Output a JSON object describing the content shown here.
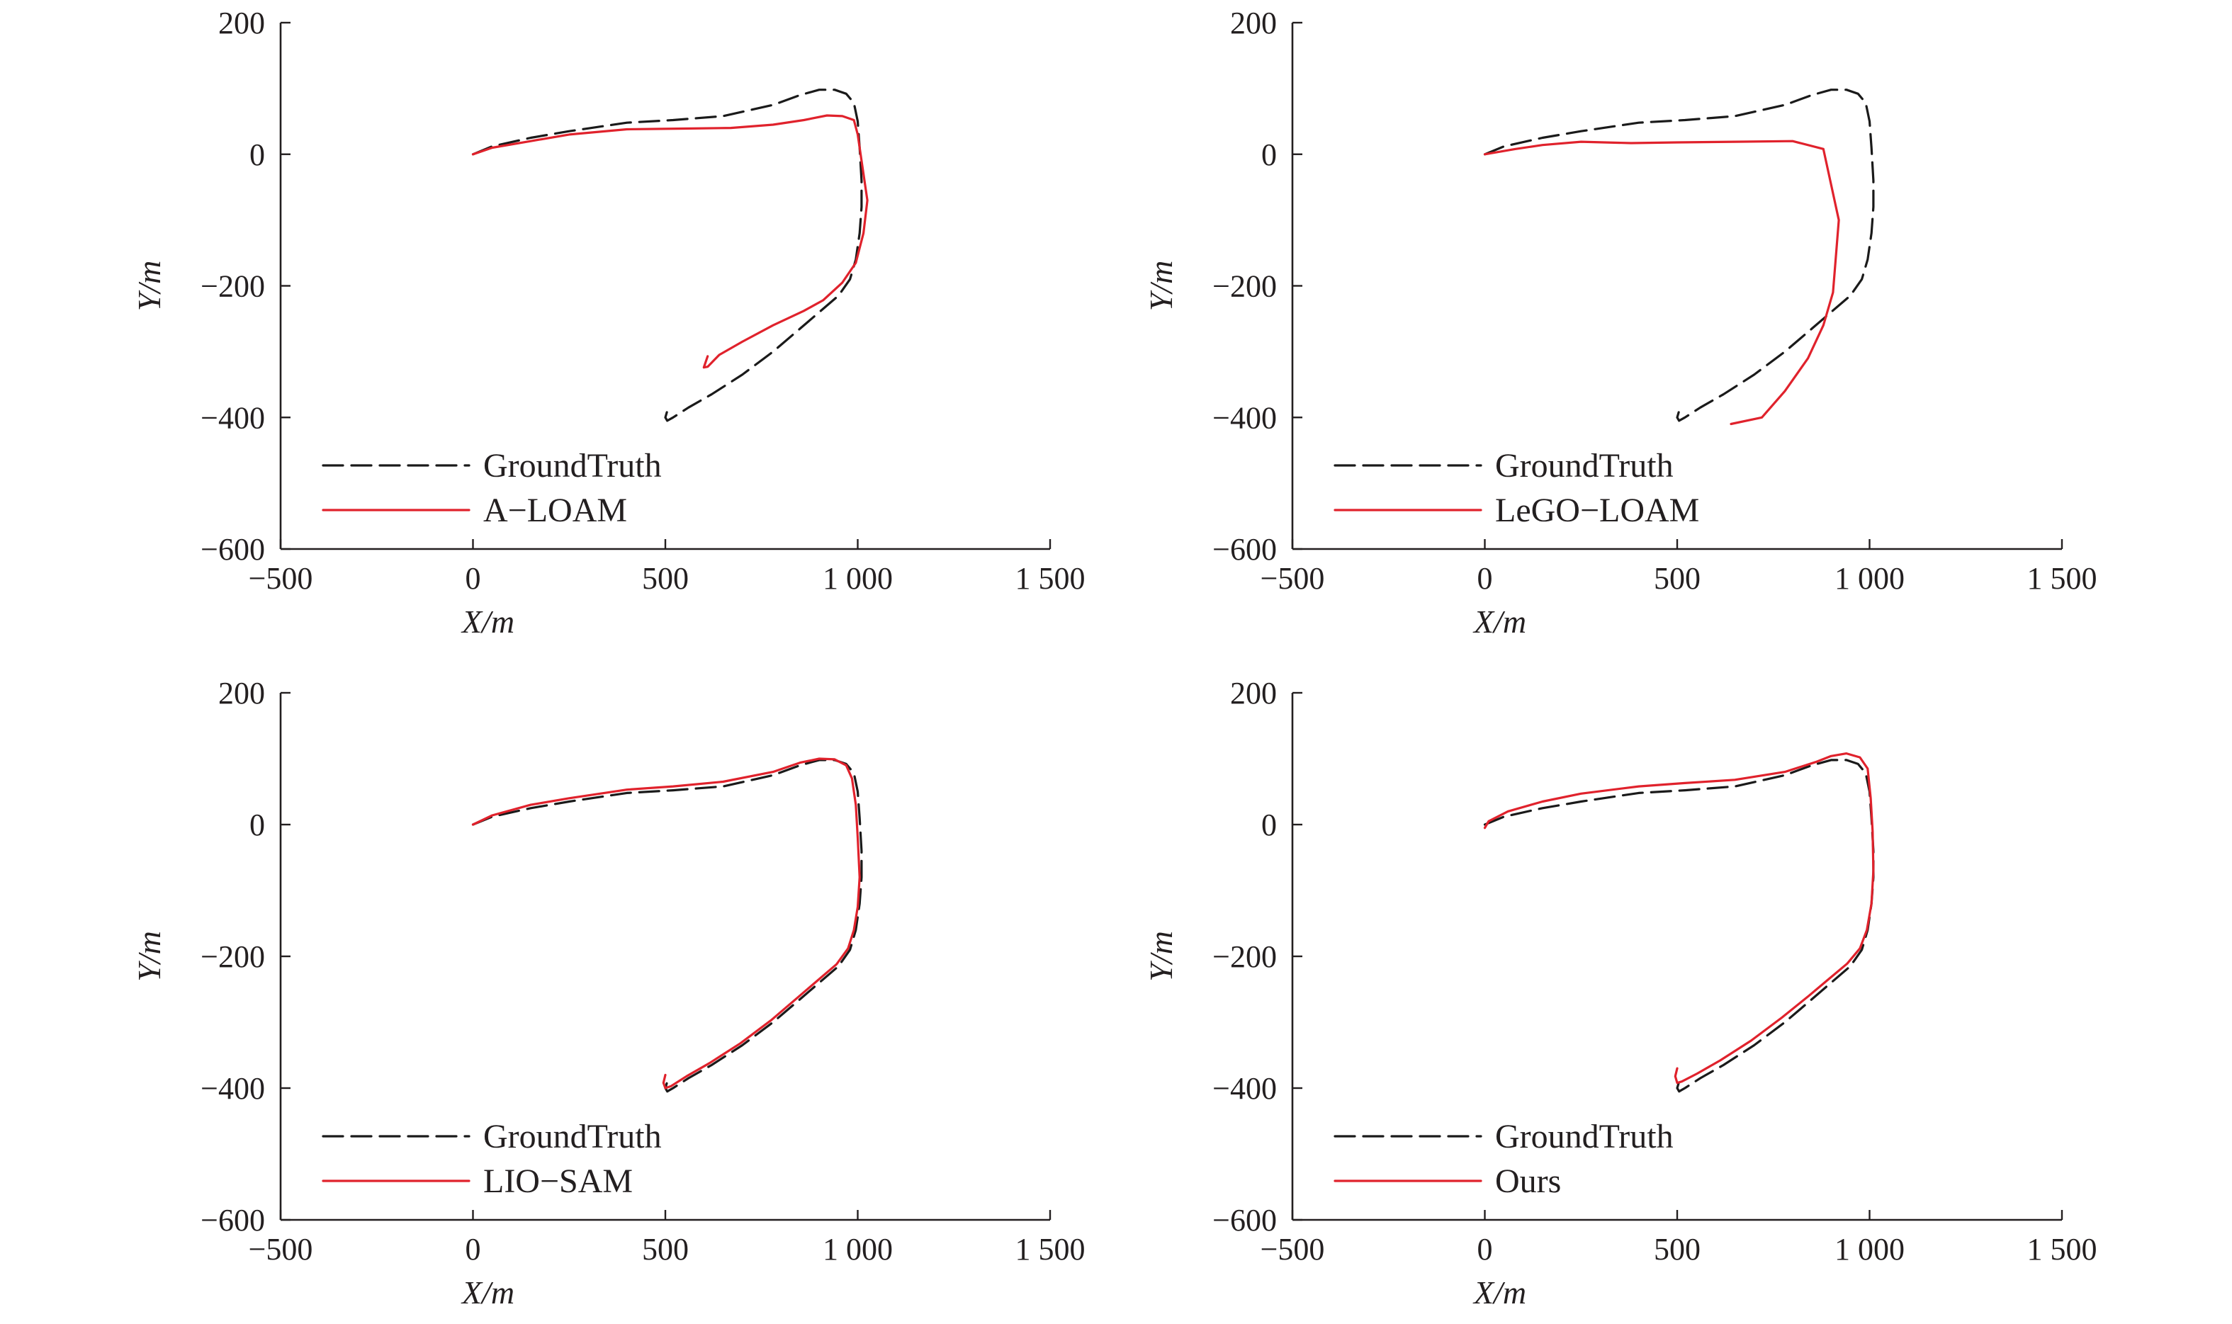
{
  "figure": {
    "colors": {
      "ground_truth": "#1a1a1a",
      "method": "#e0222c",
      "axis": "#231f20"
    }
  },
  "chart_data": [
    {
      "type": "line",
      "xlabel": "X/m",
      "ylabel": "Y/m",
      "xlim": [
        -500,
        1500
      ],
      "ylim": [
        -600,
        200
      ],
      "xticks": [
        -500,
        0,
        500,
        1000,
        1500
      ],
      "xtick_labels": [
        "−500",
        "0",
        "500",
        "1 000",
        "1 500"
      ],
      "yticks": [
        200,
        0,
        -200,
        -400,
        -600
      ],
      "ytick_labels": [
        "200",
        "0",
        "−200",
        "−400",
        "−600"
      ],
      "legend_position": "bottom-left",
      "series": [
        {
          "name": "GroundTruth",
          "style": "dashed",
          "color": "#1a1a1a",
          "x": [
            0,
            50,
            150,
            250,
            400,
            520,
            650,
            780,
            850,
            900,
            940,
            970,
            990,
            1000,
            1005,
            1010,
            1010,
            1005,
            995,
            980,
            950,
            900,
            850,
            780,
            700,
            620,
            560,
            520,
            505,
            500,
            505
          ],
          "y": [
            0,
            12,
            25,
            35,
            48,
            52,
            58,
            75,
            90,
            98,
            98,
            92,
            78,
            50,
            10,
            -40,
            -80,
            -120,
            -160,
            -190,
            -215,
            -240,
            -265,
            -300,
            -335,
            -365,
            -385,
            -400,
            -405,
            -400,
            -390
          ]
        },
        {
          "name": "A−LOAM",
          "style": "solid",
          "color": "#e0222c",
          "x": [
            0,
            50,
            150,
            250,
            400,
            550,
            670,
            780,
            860,
            920,
            960,
            990,
            1000,
            1010,
            1025,
            1015,
            995,
            960,
            910,
            860,
            780,
            700,
            640,
            610,
            600,
            610
          ],
          "y": [
            0,
            10,
            20,
            30,
            38,
            39,
            40,
            45,
            52,
            59,
            58,
            52,
            30,
            -10,
            -70,
            -120,
            -165,
            -195,
            -222,
            -238,
            -260,
            -285,
            -305,
            -323,
            -324,
            -307
          ]
        }
      ]
    },
    {
      "type": "line",
      "xlabel": "X/m",
      "ylabel": "Y/m",
      "xlim": [
        -500,
        1500
      ],
      "ylim": [
        -600,
        200
      ],
      "xticks": [
        -500,
        0,
        500,
        1000,
        1500
      ],
      "xtick_labels": [
        "−500",
        "0",
        "500",
        "1 000",
        "1 500"
      ],
      "yticks": [
        200,
        0,
        -200,
        -400,
        -600
      ],
      "ytick_labels": [
        "200",
        "0",
        "−200",
        "−400",
        "−600"
      ],
      "legend_position": "bottom-left",
      "series": [
        {
          "name": "GroundTruth",
          "style": "dashed",
          "color": "#1a1a1a",
          "x": [
            0,
            50,
            150,
            250,
            400,
            520,
            650,
            780,
            850,
            900,
            940,
            970,
            990,
            1000,
            1005,
            1010,
            1010,
            1005,
            995,
            980,
            950,
            900,
            850,
            780,
            700,
            620,
            560,
            520,
            505,
            500,
            505
          ],
          "y": [
            0,
            12,
            25,
            35,
            48,
            52,
            58,
            75,
            90,
            98,
            98,
            92,
            78,
            50,
            10,
            -40,
            -80,
            -120,
            -160,
            -190,
            -215,
            -240,
            -265,
            -300,
            -335,
            -365,
            -385,
            -400,
            -405,
            -400,
            -390
          ]
        },
        {
          "name": "LeGO−LOAM",
          "style": "solid",
          "color": "#e0222c",
          "x": [
            0,
            80,
            150,
            250,
            380,
            500,
            650,
            800,
            880,
            920,
            905,
            880,
            840,
            780,
            720,
            640
          ],
          "y": [
            0,
            8,
            14,
            19,
            17,
            18,
            19,
            20,
            8,
            -100,
            -210,
            -260,
            -310,
            -360,
            -400,
            -410
          ]
        }
      ]
    },
    {
      "type": "line",
      "xlabel": "X/m",
      "ylabel": "Y/m",
      "xlim": [
        -500,
        1500
      ],
      "ylim": [
        -600,
        200
      ],
      "xticks": [
        -500,
        0,
        500,
        1000,
        1500
      ],
      "xtick_labels": [
        "−500",
        "0",
        "500",
        "1 000",
        "1 500"
      ],
      "yticks": [
        200,
        0,
        -200,
        -400,
        -600
      ],
      "ytick_labels": [
        "200",
        "0",
        "−200",
        "−400",
        "−600"
      ],
      "legend_position": "bottom-left",
      "series": [
        {
          "name": "GroundTruth",
          "style": "dashed",
          "color": "#1a1a1a",
          "x": [
            0,
            50,
            150,
            250,
            400,
            520,
            650,
            780,
            850,
            900,
            940,
            970,
            990,
            1000,
            1005,
            1010,
            1010,
            1005,
            995,
            980,
            950,
            900,
            850,
            780,
            700,
            620,
            560,
            520,
            505,
            500,
            505
          ],
          "y": [
            0,
            12,
            25,
            35,
            48,
            52,
            58,
            75,
            90,
            98,
            98,
            92,
            78,
            50,
            10,
            -40,
            -80,
            -120,
            -160,
            -190,
            -215,
            -240,
            -265,
            -300,
            -335,
            -365,
            -385,
            -400,
            -405,
            -400,
            -390
          ]
        },
        {
          "name": "LIO−SAM",
          "style": "solid",
          "color": "#e0222c",
          "x": [
            0,
            50,
            150,
            250,
            400,
            520,
            650,
            780,
            850,
            900,
            940,
            970,
            985,
            995,
            1000,
            1005,
            1000,
            990,
            975,
            945,
            895,
            845,
            775,
            695,
            615,
            555,
            515,
            500,
            495,
            500
          ],
          "y": [
            0,
            14,
            30,
            40,
            53,
            58,
            65,
            80,
            94,
            100,
            99,
            90,
            70,
            30,
            -20,
            -80,
            -125,
            -160,
            -188,
            -212,
            -237,
            -262,
            -297,
            -332,
            -362,
            -382,
            -397,
            -400,
            -392,
            -380
          ]
        }
      ]
    },
    {
      "type": "line",
      "xlabel": "X/m",
      "ylabel": "Y/m",
      "xlim": [
        -500,
        1500
      ],
      "ylim": [
        -600,
        200
      ],
      "xticks": [
        -500,
        0,
        500,
        1000,
        1500
      ],
      "xtick_labels": [
        "−500",
        "0",
        "500",
        "1 000",
        "1 500"
      ],
      "yticks": [
        200,
        0,
        -200,
        -400,
        -600
      ],
      "ytick_labels": [
        "200",
        "0",
        "−200",
        "−400",
        "−600"
      ],
      "legend_position": "bottom-left",
      "series": [
        {
          "name": "GroundTruth",
          "style": "dashed",
          "color": "#1a1a1a",
          "x": [
            0,
            50,
            150,
            250,
            400,
            520,
            650,
            780,
            850,
            900,
            940,
            970,
            990,
            1000,
            1005,
            1010,
            1010,
            1005,
            995,
            980,
            950,
            900,
            850,
            780,
            700,
            620,
            560,
            520,
            505,
            500,
            505
          ],
          "y": [
            0,
            12,
            25,
            35,
            48,
            52,
            58,
            75,
            90,
            98,
            98,
            92,
            78,
            50,
            10,
            -40,
            -80,
            -120,
            -160,
            -190,
            -215,
            -240,
            -265,
            -300,
            -335,
            -365,
            -385,
            -400,
            -405,
            -400,
            -390
          ]
        },
        {
          "name": "Ours",
          "style": "solid",
          "color": "#e0222c",
          "x": [
            0,
            10,
            60,
            150,
            250,
            400,
            520,
            650,
            780,
            860,
            900,
            940,
            975,
            995,
            1003,
            1008,
            1010,
            1005,
            993,
            975,
            942,
            893,
            842,
            772,
            692,
            612,
            552,
            512,
            500,
            495,
            500
          ],
          "y": [
            -5,
            5,
            20,
            35,
            47,
            58,
            63,
            68,
            80,
            95,
            104,
            108,
            102,
            85,
            40,
            -10,
            -70,
            -120,
            -160,
            -188,
            -211,
            -235,
            -260,
            -293,
            -328,
            -358,
            -378,
            -390,
            -392,
            -382,
            -370
          ]
        }
      ]
    }
  ]
}
